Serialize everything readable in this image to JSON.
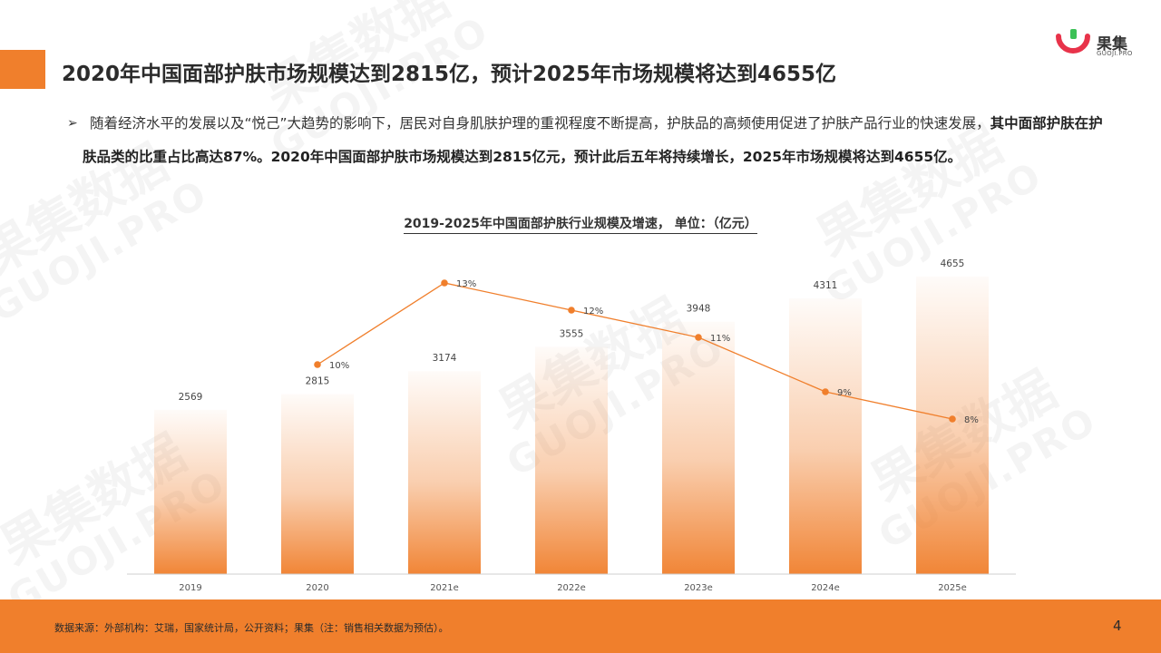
{
  "watermark": {
    "main": "果集数据",
    "sub": "GUOJI.PRO"
  },
  "logo": {
    "name": "果集",
    "domain": "GUOJI.PRO"
  },
  "title": "2020年中国面部护肤市场规模达到2815亿，预计2025年市场规模将达到4655亿",
  "paragraph": {
    "bullet": "➢",
    "part1": "随着经济水平的发展以及“悦己”大趋势的影响下，居民对自身肌肤护理的重视程度不断提高，护肤品的高频使用促进了护肤产品行业的快速发展，",
    "part2": "其中面部护肤在护肤品类的比重占比高达87%。2020年中国面部护肤市场规模达到2815亿元，预计此后五年将持续增长，2025年市场规模将达到4655亿。"
  },
  "chart_data": {
    "type": "bar",
    "title": "2019-2025年中国面部护肤行业规模及增速， 单位：（亿元）",
    "categories": [
      "2019",
      "2020",
      "2021e",
      "2022e",
      "2023e",
      "2024e",
      "2025e"
    ],
    "series": [
      {
        "type": "bar",
        "values": [
          2569,
          2815,
          3174,
          3555,
          3948,
          4311,
          4655
        ],
        "color": "#f07f2c"
      },
      {
        "type": "line",
        "values": [
          null,
          10,
          13,
          12,
          11,
          9,
          8
        ],
        "labels": [
          "",
          "10%",
          "13%",
          "12%",
          "11%",
          "9%",
          "8%"
        ],
        "color": "#f07f2c"
      }
    ]
  },
  "footer": {
    "source": "数据来源：外部机构：艾瑞，国家统计局，公开资料；果集（注：销售相关数据为预估）。",
    "page": "4"
  },
  "colors": {
    "accent": "#f07f2c"
  }
}
